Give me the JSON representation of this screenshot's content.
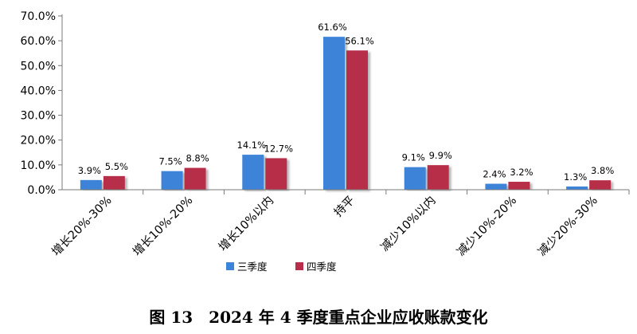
{
  "caption": "图 13　2024 年 4 季度重点企业应收账款变化",
  "colors": {
    "q3": "#3d84d8",
    "q4": "#b72d4a"
  },
  "chart_data": {
    "type": "bar",
    "categories": [
      "增长20%-30%",
      "增长10%-20%",
      "增长10%以内",
      "持平",
      "减少10%以内",
      "减少10%-20%",
      "减少20%-30%"
    ],
    "series": [
      {
        "name": "三季度",
        "values": [
          3.9,
          7.5,
          14.1,
          61.6,
          9.1,
          2.4,
          1.3
        ],
        "labels": [
          "3.9%",
          "7.5%",
          "14.1%",
          "61.6%",
          "9.1%",
          "2.4%",
          "1.3%"
        ]
      },
      {
        "name": "四季度",
        "values": [
          5.5,
          8.8,
          12.7,
          56.1,
          9.9,
          3.2,
          3.8
        ],
        "labels": [
          "5.5%",
          "8.8%",
          "12.7%",
          "56.1%",
          "9.9%",
          "3.2%",
          "3.8%"
        ]
      }
    ],
    "yticks": [
      "0.0%",
      "10.0%",
      "20.0%",
      "30.0%",
      "40.0%",
      "50.0%",
      "60.0%",
      "70.0%"
    ],
    "ylim": [
      0,
      70
    ],
    "legend": [
      "三季度",
      "四季度"
    ],
    "legend_position": "bottom-center",
    "grid": false
  }
}
